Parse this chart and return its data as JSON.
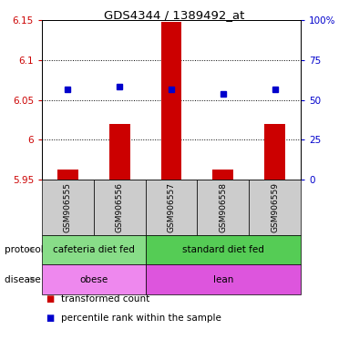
{
  "title": "GDS4344 / 1389492_at",
  "samples": [
    "GSM906555",
    "GSM906556",
    "GSM906557",
    "GSM906558",
    "GSM906559"
  ],
  "bar_values": [
    5.963,
    6.02,
    6.148,
    5.963,
    6.02
  ],
  "blue_dot_values": [
    6.063,
    6.067,
    6.063,
    6.058,
    6.063
  ],
  "bar_base": 5.95,
  "ylim": [
    5.95,
    6.15
  ],
  "yticks": [
    5.95,
    6.0,
    6.05,
    6.1,
    6.15
  ],
  "ytick_labels": [
    "5.95",
    "6",
    "6.05",
    "6.1",
    "6.15"
  ],
  "y2ticks": [
    0,
    25,
    50,
    75,
    100
  ],
  "y2tick_labels": [
    "0",
    "25",
    "50",
    "75",
    "100%"
  ],
  "bar_color": "#cc0000",
  "dot_color": "#0000cc",
  "protocol_groups": [
    {
      "label": "cafeteria diet fed",
      "start": 0,
      "end": 2,
      "color": "#88dd88"
    },
    {
      "label": "standard diet fed",
      "start": 2,
      "end": 5,
      "color": "#55cc55"
    }
  ],
  "disease_groups": [
    {
      "label": "obese",
      "start": 0,
      "end": 2,
      "color": "#ee88ee"
    },
    {
      "label": "lean",
      "start": 2,
      "end": 5,
      "color": "#dd55dd"
    }
  ],
  "sample_box_color": "#cccccc",
  "arrow_color": "#aaaaaa",
  "dotted_grid_vals": [
    6.0,
    6.05,
    6.1
  ]
}
